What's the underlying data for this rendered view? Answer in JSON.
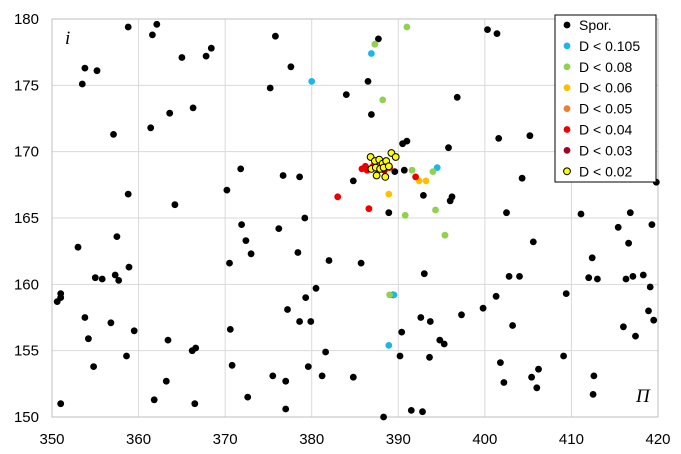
{
  "chart_data": {
    "type": "scatter",
    "x_axis_label": "Π",
    "y_axis_label": "i",
    "xlim": [
      350,
      420
    ],
    "ylim": [
      150,
      180
    ],
    "x_ticks": [
      350,
      360,
      370,
      380,
      390,
      400,
      410,
      420
    ],
    "y_ticks": [
      150,
      155,
      160,
      165,
      170,
      175,
      180
    ],
    "grid": true,
    "legend_position": "top-right",
    "series": [
      {
        "name": "Spor.",
        "color": "#000000",
        "points": [
          [
            351,
            159
          ],
          [
            351,
            159.3
          ],
          [
            350.6,
            158.7
          ],
          [
            351,
            151
          ],
          [
            353,
            162.8
          ],
          [
            353.5,
            175.1
          ],
          [
            353.8,
            176.3
          ],
          [
            353.8,
            157.5
          ],
          [
            354.2,
            155.9
          ],
          [
            354.8,
            153.8
          ],
          [
            355.2,
            176.1
          ],
          [
            355,
            160.5
          ],
          [
            355.8,
            160.4
          ],
          [
            356.8,
            157.1
          ],
          [
            357.1,
            171.3
          ],
          [
            357.3,
            160.7
          ],
          [
            357.5,
            163.6
          ],
          [
            357.7,
            160.3
          ],
          [
            358.8,
            179.4
          ],
          [
            358.8,
            166.8
          ],
          [
            358.9,
            161.3
          ],
          [
            358.6,
            154.6
          ],
          [
            359.5,
            156.5
          ],
          [
            361.4,
            171.8
          ],
          [
            361.6,
            178.8
          ],
          [
            361.8,
            151.3
          ],
          [
            362.1,
            179.6
          ],
          [
            363.2,
            152.7
          ],
          [
            363.6,
            172.9
          ],
          [
            363.4,
            155.8
          ],
          [
            364.2,
            166
          ],
          [
            365,
            177.1
          ],
          [
            366.2,
            155
          ],
          [
            366.3,
            173.3
          ],
          [
            366.5,
            151
          ],
          [
            366.6,
            155.2
          ],
          [
            367.8,
            177.2
          ],
          [
            368.4,
            177.8
          ],
          [
            370.2,
            167.1
          ],
          [
            370.5,
            161.6
          ],
          [
            370.6,
            156.6
          ],
          [
            370.8,
            153.9
          ],
          [
            371.8,
            168.7
          ],
          [
            371.9,
            164.5
          ],
          [
            372.4,
            163.3
          ],
          [
            372.6,
            151.5
          ],
          [
            373,
            162.3
          ],
          [
            375.2,
            174.8
          ],
          [
            375.5,
            153.1
          ],
          [
            375.8,
            178.7
          ],
          [
            376.2,
            164.2
          ],
          [
            376.7,
            168.2
          ],
          [
            377,
            152.7
          ],
          [
            377,
            150.6
          ],
          [
            377.2,
            158.1
          ],
          [
            377.6,
            176.4
          ],
          [
            378.4,
            162.4
          ],
          [
            378.6,
            168.1
          ],
          [
            378.6,
            157.2
          ],
          [
            379.2,
            165
          ],
          [
            379.3,
            159
          ],
          [
            379.6,
            153.8
          ],
          [
            379.9,
            157.2
          ],
          [
            380.5,
            159.7
          ],
          [
            381.2,
            153.1
          ],
          [
            381.6,
            154.9
          ],
          [
            382,
            161.8
          ],
          [
            384,
            174.3
          ],
          [
            384.8,
            153
          ],
          [
            384.8,
            167.8
          ],
          [
            385.7,
            161.6
          ],
          [
            386.5,
            175.3
          ],
          [
            386.9,
            172.8
          ],
          [
            387.7,
            178.5
          ],
          [
            388.9,
            165.4
          ],
          [
            389.4,
            159.2
          ],
          [
            390.2,
            154.6
          ],
          [
            390.4,
            156.4
          ],
          [
            390.7,
            168.6
          ],
          [
            391,
            170.8
          ],
          [
            391.5,
            150.5
          ],
          [
            392.6,
            157.5
          ],
          [
            392.8,
            150.4
          ],
          [
            392.9,
            166.7
          ],
          [
            393,
            160.8
          ],
          [
            393.6,
            154.5
          ],
          [
            393.7,
            157.2
          ],
          [
            394.8,
            155.8
          ],
          [
            395.3,
            155.5
          ],
          [
            395.8,
            170.3
          ],
          [
            396,
            166.3
          ],
          [
            396.2,
            166.6
          ],
          [
            396.8,
            174.1
          ],
          [
            397.3,
            157.7
          ],
          [
            399.8,
            158.2
          ],
          [
            400.3,
            179.2
          ],
          [
            401.3,
            159.1
          ],
          [
            401.4,
            178.9
          ],
          [
            401.6,
            171
          ],
          [
            401.8,
            154.1
          ],
          [
            402.2,
            152.6
          ],
          [
            402.5,
            165.4
          ],
          [
            402.8,
            160.6
          ],
          [
            403.2,
            156.9
          ],
          [
            404,
            160.6
          ],
          [
            404.3,
            168
          ],
          [
            405.2,
            171.2
          ],
          [
            405.4,
            153
          ],
          [
            405.6,
            163.2
          ],
          [
            406,
            152.2
          ],
          [
            406.2,
            153.6
          ],
          [
            409.1,
            154.6
          ],
          [
            409.4,
            159.3
          ],
          [
            411.1,
            165.3
          ],
          [
            412,
            160.5
          ],
          [
            412.4,
            162
          ],
          [
            412.5,
            151.7
          ],
          [
            412.6,
            153.1
          ],
          [
            413,
            160.4
          ],
          [
            415.4,
            164.3
          ],
          [
            416,
            156.8
          ],
          [
            416.3,
            160.4
          ],
          [
            416.6,
            163.1
          ],
          [
            416.8,
            165.4
          ],
          [
            417.1,
            160.6
          ],
          [
            417.4,
            156.1
          ],
          [
            418.3,
            160.7
          ],
          [
            418.9,
            158
          ],
          [
            419.1,
            159.8
          ],
          [
            419.3,
            164.5
          ],
          [
            419.5,
            157.3
          ],
          [
            419.8,
            167.7
          ],
          [
            388.3,
            150
          ],
          [
            387.3,
            168.8
          ],
          [
            389.6,
            168.5
          ],
          [
            390.5,
            170.6
          ]
        ]
      },
      {
        "name": "D < 0.105",
        "color": "#1fb5e8",
        "points": [
          [
            380,
            175.3
          ],
          [
            386.9,
            177.4
          ],
          [
            394.5,
            168.8
          ],
          [
            389.5,
            159.2
          ],
          [
            388.9,
            155.4
          ]
        ]
      },
      {
        "name": "D < 0.08",
        "color": "#92d050",
        "points": [
          [
            387.3,
            178.1
          ],
          [
            391,
            179.4
          ],
          [
            388.2,
            173.9
          ],
          [
            391.6,
            168.6
          ],
          [
            394.3,
            165.6
          ],
          [
            390.8,
            165.2
          ],
          [
            395.4,
            163.7
          ],
          [
            389,
            159.2
          ],
          [
            394,
            168.5
          ]
        ]
      },
      {
        "name": "D < 0.06",
        "color": "#ffc000",
        "points": [
          [
            388.9,
            166.8
          ],
          [
            392.4,
            167.8
          ],
          [
            393.2,
            167.8
          ]
        ]
      },
      {
        "name": "D < 0.05",
        "color": "#ed7d31",
        "points": [
          [
            387.5,
            169
          ]
        ]
      },
      {
        "name": "D < 0.04",
        "color": "#ee0000",
        "points": [
          [
            386.2,
            168.9
          ],
          [
            386.4,
            168.6
          ],
          [
            385.8,
            168.7
          ],
          [
            387.1,
            168.9
          ],
          [
            389,
            168.8
          ],
          [
            392,
            168.1
          ],
          [
            383,
            166.6
          ],
          [
            386.6,
            165.7
          ]
        ]
      },
      {
        "name": "D < 0.03",
        "color": "#a50021",
        "points": [
          [
            387.6,
            168.7
          ],
          [
            388.4,
            168.6
          ]
        ]
      },
      {
        "name": "D < 0.02",
        "color": "#ffff00",
        "points": [
          [
            386.8,
            169.6
          ],
          [
            387.3,
            169.3
          ],
          [
            387.8,
            169.4
          ],
          [
            388.2,
            169.1
          ],
          [
            388.6,
            169.3
          ],
          [
            389.2,
            169.9
          ],
          [
            389.7,
            169.6
          ],
          [
            386.9,
            168.7
          ],
          [
            387.4,
            168.8
          ],
          [
            387.9,
            168.7
          ],
          [
            388.3,
            168.8
          ],
          [
            388.9,
            168.9
          ],
          [
            387.5,
            168.2
          ],
          [
            388.5,
            168.1
          ]
        ]
      }
    ]
  }
}
